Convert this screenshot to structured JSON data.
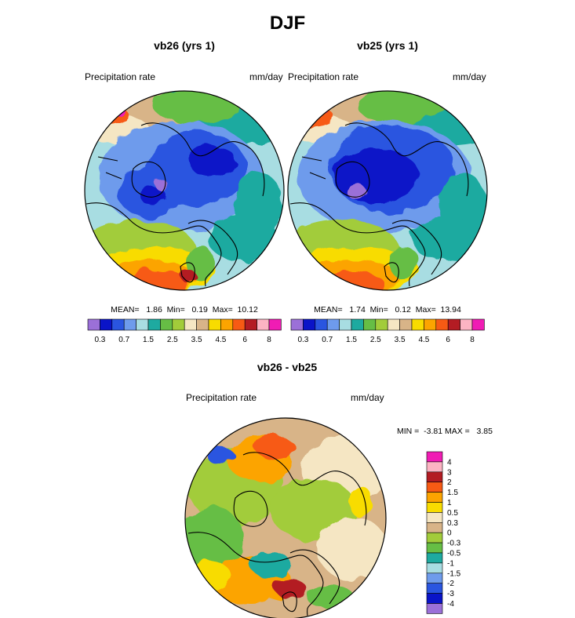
{
  "title": "DJF",
  "colors": {
    "abs_scale": [
      "#9b70d8",
      "#0a14c8",
      "#2a55e0",
      "#6e9bec",
      "#a8dde2",
      "#1eaaa0",
      "#66be45",
      "#a2cc3a",
      "#f5e6c3",
      "#d8b488",
      "#f8dc00",
      "#fca400",
      "#f75a14",
      "#b31c23",
      "#fcb4c3",
      "#f01cb4"
    ],
    "diff_scale": [
      "#9b70d8",
      "#0a14c8",
      "#2a55e0",
      "#6e9bec",
      "#a8dde2",
      "#1eaaa0",
      "#66be45",
      "#a2cc3a",
      "#d8b488",
      "#f5e6c3",
      "#f8dc00",
      "#fca400",
      "#f75a14",
      "#b31c23",
      "#fcb4c3",
      "#f01cb4"
    ]
  },
  "panels": [
    {
      "title": "vb26 (yrs 1)",
      "left_label": "Precipitation rate",
      "right_label": "mm/day",
      "stats": "MEAN=   1.86  Min=   0.19  Max=  10.12",
      "scale_labels": [
        "0.3",
        "0.7",
        "1.5",
        "2.5",
        "3.5",
        "4.5",
        "6",
        "8"
      ]
    },
    {
      "title": "vb25 (yrs 1)",
      "left_label": "Precipitation rate",
      "right_label": "mm/day",
      "stats": "MEAN=   1.74  Min=   0.12  Max=  13.94",
      "scale_labels": [
        "0.3",
        "0.7",
        "1.5",
        "2.5",
        "3.5",
        "4.5",
        "6",
        "8"
      ]
    }
  ],
  "diff_panel": {
    "title": "vb26 - vb25",
    "left_label": "Precipitation rate",
    "right_label": "mm/day",
    "minmax": "MIN =  -3.81 MAX =   3.85",
    "scale_labels": [
      "4",
      "3",
      "2",
      "1.5",
      "1",
      "0.5",
      "0.3",
      "0",
      "-0.3",
      "-0.5",
      "-1",
      "-1.5",
      "-2",
      "-3",
      "-4"
    ]
  },
  "chart_data": [
    {
      "type": "heatmap",
      "projection": "north polar stereographic",
      "title": "vb26 (yrs 1)",
      "variable": "Precipitation rate",
      "units": "mm/day",
      "mean": 1.86,
      "min": 0.19,
      "max": 10.12,
      "contour_levels": [
        0.2,
        0.3,
        0.5,
        0.7,
        1,
        1.5,
        2,
        2.5,
        3,
        3.5,
        4,
        4.5,
        5,
        6,
        7,
        8
      ]
    },
    {
      "type": "heatmap",
      "projection": "north polar stereographic",
      "title": "vb25 (yrs 1)",
      "variable": "Precipitation rate",
      "units": "mm/day",
      "mean": 1.74,
      "min": 0.12,
      "max": 13.94,
      "contour_levels": [
        0.2,
        0.3,
        0.5,
        0.7,
        1,
        1.5,
        2,
        2.5,
        3,
        3.5,
        4,
        4.5,
        5,
        6,
        7,
        8
      ]
    },
    {
      "type": "heatmap",
      "projection": "north polar stereographic",
      "title": "vb26 - vb25",
      "variable": "Precipitation rate",
      "units": "mm/day",
      "min": -3.81,
      "max": 3.85,
      "contour_levels": [
        -4,
        -3,
        -2,
        -1.5,
        -1,
        -0.5,
        -0.3,
        0,
        0.3,
        0.5,
        1,
        1.5,
        2,
        3,
        4
      ]
    }
  ]
}
